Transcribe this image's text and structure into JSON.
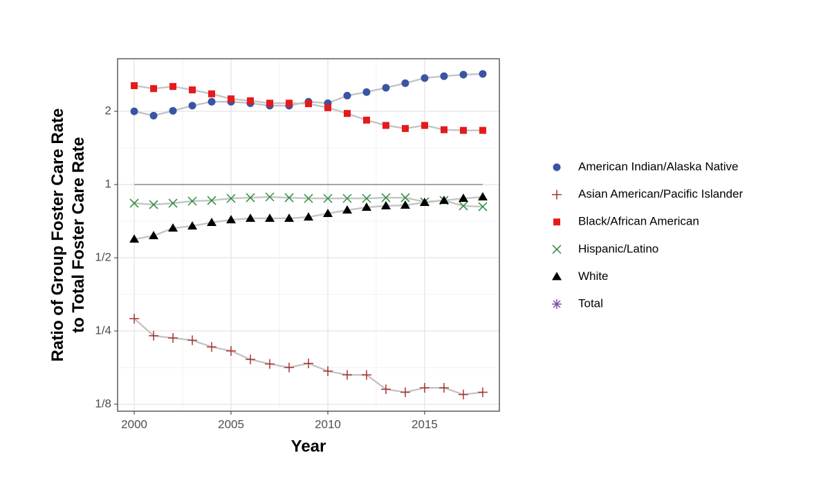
{
  "chart_data": {
    "type": "line",
    "y_label": "Ratio of Group Foster Care Rate\nto Total Foster Care Rate",
    "x_label": "Year",
    "x": [
      2000,
      2001,
      2002,
      2003,
      2004,
      2005,
      2006,
      2007,
      2008,
      2009,
      2010,
      2011,
      2012,
      2013,
      2014,
      2015,
      2016,
      2017,
      2018
    ],
    "series": [
      {
        "name": "American Indian/Alaska Native",
        "color": "#3a54a4",
        "shape": "circle",
        "values": [
          2.0,
          1.92,
          2.01,
          2.11,
          2.19,
          2.19,
          2.16,
          2.11,
          2.11,
          2.19,
          2.16,
          2.32,
          2.4,
          2.5,
          2.61,
          2.74,
          2.79,
          2.83,
          2.85
        ]
      },
      {
        "name": "Asian American/Pacific Islander",
        "color": "#a83232",
        "shape": "plus",
        "values": [
          0.281,
          0.239,
          0.234,
          0.229,
          0.215,
          0.207,
          0.191,
          0.183,
          0.177,
          0.184,
          0.171,
          0.165,
          0.165,
          0.144,
          0.14,
          0.146,
          0.146,
          0.137,
          0.14
        ]
      },
      {
        "name": "Black/African American",
        "color": "#e41a1c",
        "shape": "square",
        "values": [
          2.55,
          2.48,
          2.53,
          2.45,
          2.36,
          2.25,
          2.21,
          2.16,
          2.16,
          2.15,
          2.07,
          1.96,
          1.84,
          1.75,
          1.7,
          1.75,
          1.68,
          1.67,
          1.67
        ]
      },
      {
        "name": "Hispanic/Latino",
        "color": "#2e8b3e",
        "shape": "cross",
        "values": [
          0.838,
          0.827,
          0.838,
          0.855,
          0.86,
          0.877,
          0.883,
          0.889,
          0.883,
          0.877,
          0.877,
          0.877,
          0.877,
          0.883,
          0.883,
          0.849,
          0.86,
          0.817,
          0.811
        ]
      },
      {
        "name": "White",
        "color": "#000000",
        "shape": "triangle",
        "values": [
          0.596,
          0.616,
          0.662,
          0.675,
          0.698,
          0.716,
          0.726,
          0.726,
          0.726,
          0.735,
          0.76,
          0.785,
          0.806,
          0.817,
          0.822,
          0.844,
          0.86,
          0.877,
          0.889
        ]
      },
      {
        "name": "Total",
        "color": "#7b4fa8",
        "shape": "asterisk",
        "line_only": true,
        "values": [
          1,
          1,
          1,
          1,
          1,
          1,
          1,
          1,
          1,
          1,
          1,
          1,
          1,
          1,
          1,
          1,
          1,
          1,
          1
        ]
      }
    ],
    "xlim": [
      1999.14,
      2018.86
    ],
    "xticks": [
      2000,
      2005,
      2010,
      2015
    ],
    "ylim": [
      0.117,
      3.29
    ],
    "yticks": [
      {
        "value": 0.125,
        "label": "1/8"
      },
      {
        "value": 0.25,
        "label": "1/4"
      },
      {
        "value": 0.5,
        "label": "1/2"
      },
      1,
      2
    ],
    "log_y": true,
    "log_base": 2,
    "grid": true,
    "legend": "right"
  }
}
